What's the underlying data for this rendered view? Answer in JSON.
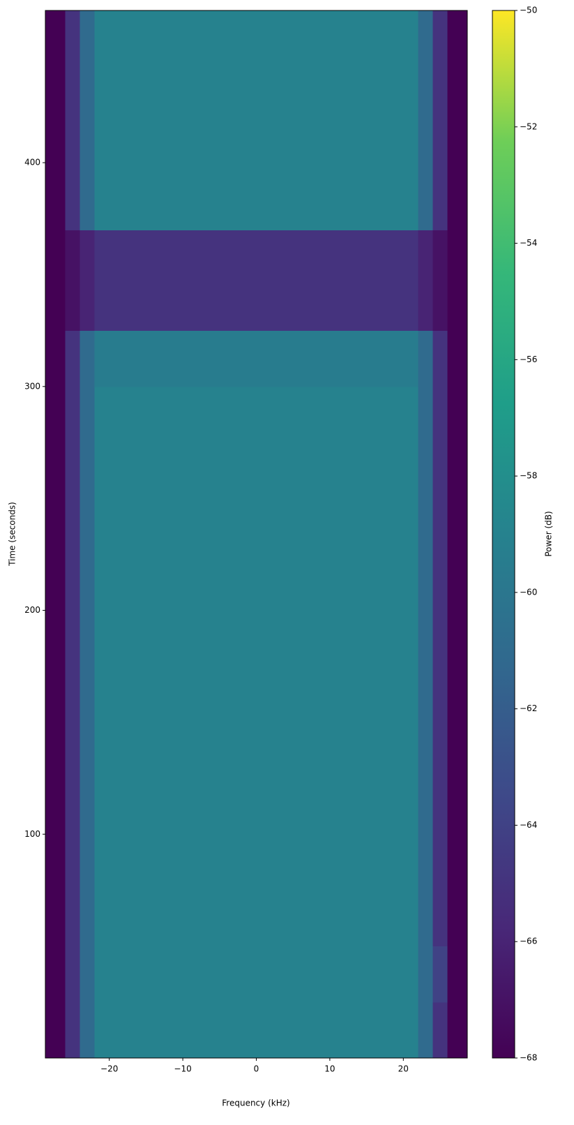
{
  "chart_data": {
    "type": "heatmap",
    "xlabel": "Frequency (kHz)",
    "ylabel": "Time (seconds)",
    "colorbar_label": "Power (dB)",
    "xlim": [
      -28.7,
      28.7
    ],
    "ylim": [
      0,
      468
    ],
    "xticks": [
      {
        "value": -20,
        "label": "−20"
      },
      {
        "value": -10,
        "label": "−10"
      },
      0,
      10,
      20
    ],
    "yticks": [
      100,
      200,
      300,
      400
    ],
    "x_edges": [
      -28.7,
      -26,
      -24,
      -22,
      22,
      24,
      26,
      28.7
    ],
    "y_edges": [
      0,
      25,
      50,
      100,
      150,
      200,
      250,
      300,
      325,
      370,
      400,
      440,
      468
    ],
    "z": [
      [
        -68,
        -65,
        -61,
        -59,
        -61,
        -65,
        -68
      ],
      [
        -68,
        -65,
        -61,
        -59,
        -61,
        -64,
        -68
      ],
      [
        -68,
        -65,
        -61,
        -59,
        -61,
        -65,
        -68
      ],
      [
        -68,
        -65,
        -61,
        -59,
        -61,
        -65,
        -68
      ],
      [
        -68,
        -65,
        -61,
        -59,
        -61,
        -65,
        -68
      ],
      [
        -68,
        -65,
        -61,
        -59,
        -61,
        -65,
        -68
      ],
      [
        -68,
        -65,
        -61,
        -59,
        -61,
        -65,
        -68
      ],
      [
        -68,
        -65,
        -61,
        -59.5,
        -61,
        -65,
        -68
      ],
      [
        -68,
        -67,
        -66,
        -65,
        -66,
        -67,
        -68
      ],
      [
        -68,
        -65,
        -61,
        -59,
        -61,
        -65,
        -68
      ],
      [
        -68,
        -65,
        -61,
        -59,
        -61,
        -65,
        -68
      ],
      [
        -68,
        -65,
        -61,
        -59,
        -61,
        -65,
        -68
      ]
    ],
    "clim": [
      -68,
      -50
    ],
    "colorbar_ticks": [
      {
        "value": -68,
        "label": "−68"
      },
      {
        "value": -66,
        "label": "−66"
      },
      {
        "value": -64,
        "label": "−64"
      },
      {
        "value": -62,
        "label": "−62"
      },
      {
        "value": -60,
        "label": "−60"
      },
      {
        "value": -58,
        "label": "−58"
      },
      {
        "value": -56,
        "label": "−56"
      },
      {
        "value": -54,
        "label": "−54"
      },
      {
        "value": -52,
        "label": "−52"
      },
      {
        "value": -50,
        "label": "−50"
      }
    ],
    "colormap": [
      "#440154",
      "#482878",
      "#3e4989",
      "#31688e",
      "#26828e",
      "#1f9e89",
      "#35b779",
      "#6ece58",
      "#fde725"
    ]
  }
}
